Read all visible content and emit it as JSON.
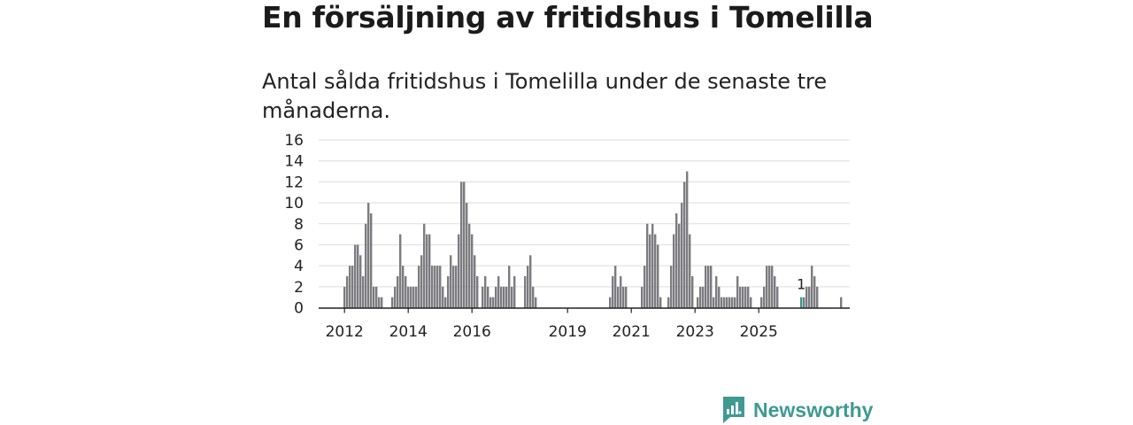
{
  "title": "En försäljning av fritidshus i Tomelilla",
  "subtitle": "Antal sålda fritidshus i Tomelilla under de senaste tre månaderna.",
  "brand": {
    "name": "Newsworthy",
    "color": "#3e9a93"
  },
  "colors": {
    "bar": "#7b7b80",
    "highlight": "#2a9d8f",
    "grid": "#dddddd",
    "axis": "#222222"
  },
  "chart_data": {
    "type": "bar",
    "title": "Antal sålda fritidshus i Tomelilla under de senaste tre månaderna.",
    "xlabel": "",
    "ylabel": "",
    "ylim": [
      0,
      16
    ],
    "yticks": [
      0,
      2,
      4,
      6,
      8,
      10,
      12,
      14,
      16
    ],
    "xticks": [
      "2012",
      "2014",
      "2016",
      "2019",
      "2021",
      "2023",
      "2025"
    ],
    "grid": true,
    "series_start": "2012-01",
    "values": [
      2,
      3,
      4,
      4,
      6,
      6,
      5,
      3,
      8,
      10,
      9,
      2,
      2,
      1,
      1,
      0,
      0,
      0,
      1,
      2,
      3,
      7,
      4,
      3,
      2,
      2,
      2,
      2,
      4,
      5,
      8,
      7,
      7,
      4,
      4,
      4,
      4,
      2,
      1,
      3,
      5,
      4,
      4,
      7,
      12,
      12,
      10,
      8,
      7,
      5,
      3,
      0,
      2,
      3,
      2,
      1,
      1,
      2,
      3,
      2,
      2,
      2,
      4,
      2,
      3,
      0,
      0,
      0,
      3,
      4,
      5,
      2,
      1,
      0,
      0,
      0,
      0,
      0,
      0,
      0,
      0,
      0,
      0,
      0,
      0,
      0,
      0,
      0,
      0,
      0,
      0,
      0,
      0,
      0,
      0,
      0,
      0,
      0,
      0,
      0,
      1,
      3,
      4,
      2,
      3,
      2,
      2,
      0,
      0,
      0,
      0,
      0,
      2,
      4,
      8,
      7,
      8,
      7,
      6,
      1,
      0,
      0,
      1,
      4,
      7,
      9,
      8,
      10,
      12,
      13,
      7,
      3,
      0,
      1,
      2,
      2,
      4,
      4,
      4,
      1,
      3,
      2,
      1,
      1,
      1,
      1,
      1,
      1,
      3,
      2,
      2,
      2,
      2,
      1,
      0,
      0,
      0,
      1,
      2,
      4,
      4,
      4,
      3,
      2,
      0,
      0,
      0,
      0,
      0,
      0,
      0,
      0,
      1,
      1,
      2,
      2,
      4,
      3,
      2,
      0,
      0,
      0,
      0,
      0,
      0,
      0,
      0,
      1
    ],
    "highlight": {
      "label": "1",
      "value": 1,
      "index": 172
    }
  }
}
